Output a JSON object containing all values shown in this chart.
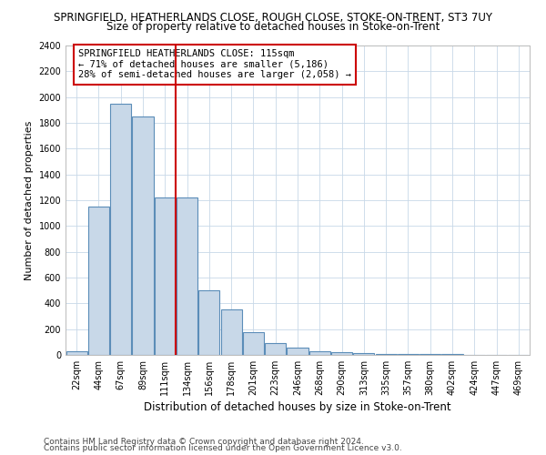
{
  "title": "SPRINGFIELD, HEATHERLANDS CLOSE, ROUGH CLOSE, STOKE-ON-TRENT, ST3 7UY",
  "subtitle": "Size of property relative to detached houses in Stoke-on-Trent",
  "xlabel": "Distribution of detached houses by size in Stoke-on-Trent",
  "ylabel": "Number of detached properties",
  "footnote1": "Contains HM Land Registry data © Crown copyright and database right 2024.",
  "footnote2": "Contains public sector information licensed under the Open Government Licence v3.0.",
  "bar_labels": [
    "22sqm",
    "44sqm",
    "67sqm",
    "89sqm",
    "111sqm",
    "134sqm",
    "156sqm",
    "178sqm",
    "201sqm",
    "223sqm",
    "246sqm",
    "268sqm",
    "290sqm",
    "313sqm",
    "335sqm",
    "357sqm",
    "380sqm",
    "402sqm",
    "424sqm",
    "447sqm",
    "469sqm"
  ],
  "bar_values": [
    30,
    1150,
    1950,
    1850,
    1220,
    1220,
    500,
    350,
    175,
    90,
    55,
    30,
    18,
    12,
    10,
    8,
    5,
    4,
    3,
    2,
    1
  ],
  "bar_color": "#c8d8e8",
  "bar_edge_color": "#5b8db8",
  "ylim": [
    0,
    2400
  ],
  "yticks": [
    0,
    200,
    400,
    600,
    800,
    1000,
    1200,
    1400,
    1600,
    1800,
    2000,
    2200,
    2400
  ],
  "vline_x": 4.5,
  "vline_color": "#cc0000",
  "annotation_text": "SPRINGFIELD HEATHERLANDS CLOSE: 115sqm\n← 71% of detached houses are smaller (5,186)\n28% of semi-detached houses are larger (2,058) →",
  "bg_color": "#ffffff",
  "grid_color": "#c8d8e8",
  "title_fontsize": 8.5,
  "subtitle_fontsize": 8.5,
  "ylabel_fontsize": 8,
  "xlabel_fontsize": 8.5,
  "annot_fontsize": 7.5,
  "tick_fontsize": 7,
  "footnote_fontsize": 6.5
}
